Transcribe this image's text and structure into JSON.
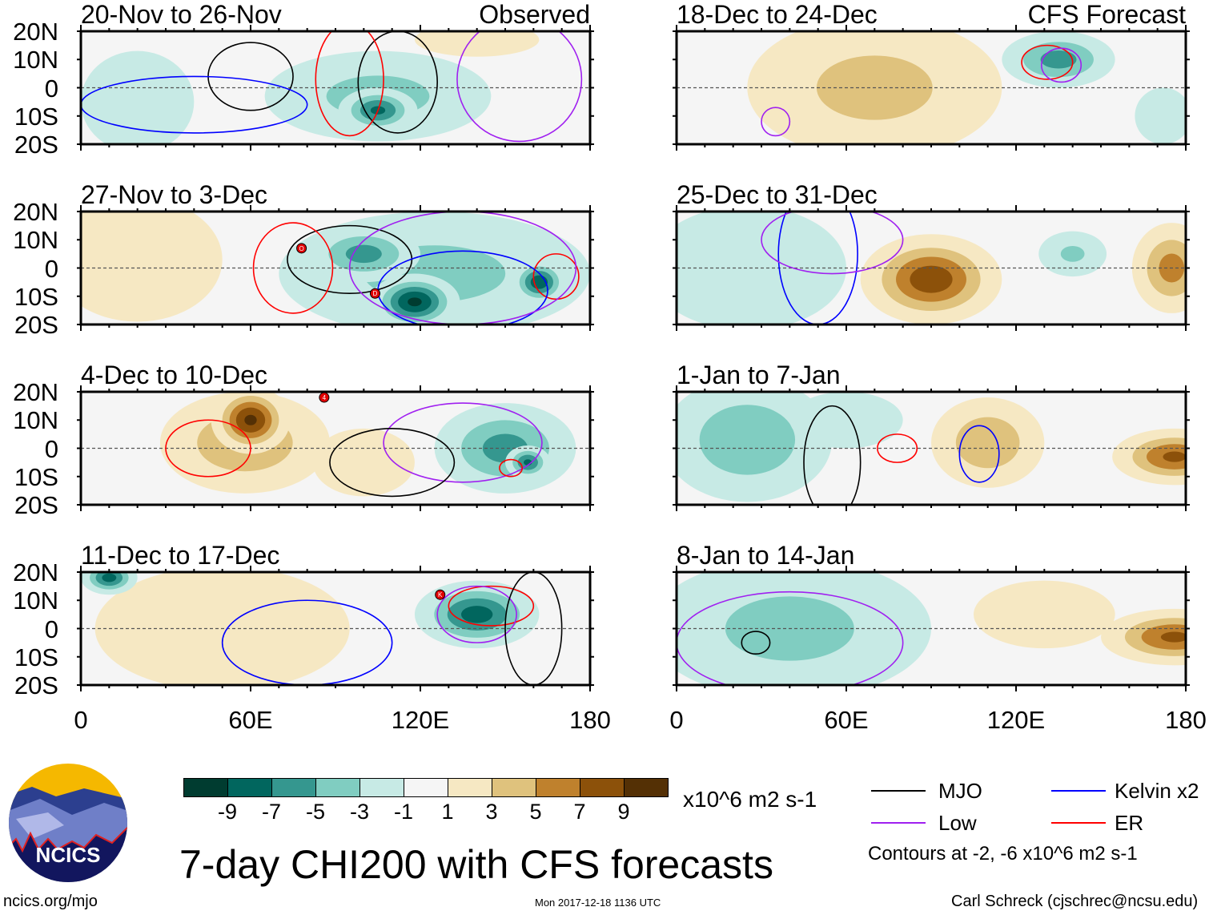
{
  "header": {
    "observed_label": "Observed",
    "forecast_label": "CFS Forecast"
  },
  "chart_data": {
    "type": "heatmap",
    "title": "7-day CHI200 with CFS forecasts",
    "variable": "200-hPa velocity potential anomaly",
    "units": "x10^6 m2 s-1",
    "xlim": [
      0,
      180
    ],
    "ylim": [
      -20,
      20
    ],
    "x_ticks": [
      "0",
      "60E",
      "120E",
      "180"
    ],
    "x_tick_values": [
      0,
      60,
      120,
      180
    ],
    "y_ticks": [
      "20N",
      "10N",
      "0",
      "10S",
      "20S"
    ],
    "y_tick_values": [
      20,
      10,
      0,
      -10,
      -20
    ],
    "colorbar": {
      "labels": [
        "-9",
        "-7",
        "-5",
        "-3",
        "-1",
        "1",
        "3",
        "5",
        "7",
        "9"
      ],
      "levels": [
        -9,
        -7,
        -5,
        -3,
        -1,
        1,
        3,
        5,
        7,
        9
      ],
      "colors": [
        "#003c30",
        "#01665e",
        "#35978f",
        "#80cdc1",
        "#c7eae5",
        "#f5f5f5",
        "#f6e8c3",
        "#dfc27d",
        "#bf812d",
        "#8c510a",
        "#543005"
      ]
    },
    "contour_colors": {
      "MJO": "#000000",
      "Kelvin": "#0000ff",
      "Low": "#a020f0",
      "ER": "#ff0000"
    },
    "panels": [
      {
        "title": "20-Nov to 26-Nov",
        "tag": "observed",
        "anomalies": [
          {
            "lon": 105,
            "lat": -3,
            "value": -4,
            "rx": 40,
            "ry": 16
          },
          {
            "lon": 105,
            "lat": -8,
            "value": -7.5,
            "rx": 14,
            "ry": 8
          },
          {
            "lon": 140,
            "lat": 17,
            "value": 2,
            "rx": 22,
            "ry": 6
          },
          {
            "lon": 20,
            "lat": -5,
            "value": -1.8,
            "rx": 20,
            "ry": 18
          }
        ],
        "contours": [
          {
            "type": "MJO",
            "lon": 60,
            "lat": 4,
            "rx": 15,
            "ry": 12
          },
          {
            "type": "MJO",
            "lon": 112,
            "lat": 2,
            "rx": 14,
            "ry": 18
          },
          {
            "type": "ER",
            "lon": 95,
            "lat": 3,
            "rx": 12,
            "ry": 20
          },
          {
            "type": "Kelvin",
            "lon": 40,
            "lat": -6,
            "rx": 40,
            "ry": 10
          },
          {
            "type": "Low",
            "lon": 155,
            "lat": 3,
            "rx": 22,
            "ry": 22
          }
        ],
        "storms": []
      },
      {
        "title": "27-Nov to 3-Dec",
        "tag": "",
        "anomalies": [
          {
            "lon": 18,
            "lat": -2,
            "value": 8,
            "rx": 17,
            "ry": 13
          },
          {
            "lon": 20,
            "lat": 3,
            "value": 3,
            "rx": 30,
            "ry": 22
          },
          {
            "lon": 125,
            "lat": -2,
            "value": -4,
            "rx": 55,
            "ry": 22
          },
          {
            "lon": 100,
            "lat": 5,
            "value": -6,
            "rx": 20,
            "ry": 10
          },
          {
            "lon": 118,
            "lat": -12,
            "value": -9.5,
            "rx": 16,
            "ry": 10
          },
          {
            "lon": 162,
            "lat": -5,
            "value": -8.5,
            "rx": 10,
            "ry": 8
          }
        ],
        "contours": [
          {
            "type": "MJO",
            "lon": 95,
            "lat": 3,
            "rx": 22,
            "ry": 12
          },
          {
            "type": "ER",
            "lon": 75,
            "lat": 0,
            "rx": 14,
            "ry": 16
          },
          {
            "type": "ER",
            "lon": 168,
            "lat": -3,
            "rx": 8,
            "ry": 8
          },
          {
            "type": "Kelvin",
            "lon": 135,
            "lat": -8,
            "rx": 30,
            "ry": 14
          },
          {
            "type": "Low",
            "lon": 135,
            "lat": 0,
            "rx": 40,
            "ry": 20
          }
        ],
        "storms": [
          {
            "label": "O",
            "lon": 78,
            "lat": 7
          },
          {
            "label": "D",
            "lon": 104,
            "lat": -9
          }
        ]
      },
      {
        "title": "4-Dec to 10-Dec",
        "tag": "",
        "anomalies": [
          {
            "lon": 58,
            "lat": 2,
            "value": 5,
            "rx": 30,
            "ry": 18
          },
          {
            "lon": 60,
            "lat": 10,
            "value": 9.5,
            "rx": 14,
            "ry": 12
          },
          {
            "lon": 100,
            "lat": -5,
            "value": 3,
            "rx": 18,
            "ry": 12
          },
          {
            "lon": 150,
            "lat": 0,
            "value": -6,
            "rx": 25,
            "ry": 16
          },
          {
            "lon": 158,
            "lat": -5,
            "value": -7.5,
            "rx": 8,
            "ry": 6
          }
        ],
        "contours": [
          {
            "type": "ER",
            "lon": 45,
            "lat": 0,
            "rx": 15,
            "ry": 10
          },
          {
            "type": "Low",
            "lon": 135,
            "lat": 2,
            "rx": 28,
            "ry": 14
          },
          {
            "type": "MJO",
            "lon": 110,
            "lat": -5,
            "rx": 22,
            "ry": 12
          },
          {
            "type": "ER",
            "lon": 152,
            "lat": -7,
            "rx": 4,
            "ry": 3
          }
        ],
        "storms": [
          {
            "label": "4",
            "lon": 86,
            "lat": 18
          }
        ]
      },
      {
        "title": "11-Dec to 17-Dec",
        "tag": "",
        "anomalies": [
          {
            "lon": 70,
            "lat": -2,
            "value": 7.5,
            "rx": 22,
            "ry": 14
          },
          {
            "lon": 55,
            "lat": 12,
            "value": 5,
            "rx": 15,
            "ry": 10
          },
          {
            "lon": 50,
            "lat": 0,
            "value": 3,
            "rx": 45,
            "ry": 22
          },
          {
            "lon": 140,
            "lat": 5,
            "value": -8,
            "rx": 22,
            "ry": 12
          },
          {
            "lon": 10,
            "lat": 18,
            "value": -8,
            "rx": 10,
            "ry": 6
          }
        ],
        "contours": [
          {
            "type": "ER",
            "lon": 145,
            "lat": 8,
            "rx": 15,
            "ry": 7
          },
          {
            "type": "Low",
            "lon": 140,
            "lat": 5,
            "rx": 14,
            "ry": 10
          },
          {
            "type": "Kelvin",
            "lon": 80,
            "lat": -5,
            "rx": 30,
            "ry": 15
          },
          {
            "type": "MJO",
            "lon": 160,
            "lat": 0,
            "rx": 10,
            "ry": 20
          }
        ],
        "storms": [
          {
            "label": "K",
            "lon": 127,
            "lat": 12
          }
        ]
      },
      {
        "title": "18-Dec to 24-Dec",
        "tag": "forecast",
        "anomalies": [
          {
            "lon": 80,
            "lat": -3,
            "value": 10,
            "rx": 24,
            "ry": 15
          },
          {
            "lon": 70,
            "lat": 0,
            "value": 4,
            "rx": 45,
            "ry": 25
          },
          {
            "lon": 135,
            "lat": 10,
            "value": -6,
            "rx": 20,
            "ry": 10
          },
          {
            "lon": 172,
            "lat": -10,
            "value": -3,
            "rx": 10,
            "ry": 10
          }
        ],
        "contours": [
          {
            "type": "ER",
            "lon": 131,
            "lat": 9,
            "rx": 9,
            "ry": 6
          },
          {
            "type": "Low",
            "lon": 136,
            "lat": 8,
            "rx": 7,
            "ry": 6
          },
          {
            "type": "Low",
            "lon": 35,
            "lat": -12,
            "rx": 5,
            "ry": 5
          }
        ],
        "storms": []
      },
      {
        "title": "25-Dec to 31-Dec",
        "tag": "",
        "anomalies": [
          {
            "lon": 90,
            "lat": -4,
            "value": 8.5,
            "rx": 25,
            "ry": 16
          },
          {
            "lon": 175,
            "lat": 0,
            "value": 6,
            "rx": 14,
            "ry": 16
          },
          {
            "lon": 25,
            "lat": 0,
            "value": -3,
            "rx": 35,
            "ry": 22
          },
          {
            "lon": 140,
            "lat": 5,
            "value": -3.5,
            "rx": 12,
            "ry": 8
          }
        ],
        "contours": [
          {
            "type": "Kelvin",
            "lon": 50,
            "lat": 5,
            "rx": 14,
            "ry": 25
          },
          {
            "type": "Low",
            "lon": 55,
            "lat": 10,
            "rx": 25,
            "ry": 12
          }
        ],
        "storms": []
      },
      {
        "title": "1-Jan to 7-Jan",
        "tag": "",
        "anomalies": [
          {
            "lon": 25,
            "lat": 3,
            "value": -5,
            "rx": 30,
            "ry": 22
          },
          {
            "lon": 60,
            "lat": 10,
            "value": -3,
            "rx": 20,
            "ry": 10
          },
          {
            "lon": 110,
            "lat": 2,
            "value": 5,
            "rx": 20,
            "ry": 16
          },
          {
            "lon": 176,
            "lat": -3,
            "value": 7.5,
            "rx": 22,
            "ry": 10
          }
        ],
        "contours": [
          {
            "type": "ER",
            "lon": 78,
            "lat": 0,
            "rx": 7,
            "ry": 5
          },
          {
            "type": "Kelvin",
            "lon": 107,
            "lat": -2,
            "rx": 7,
            "ry": 10
          },
          {
            "type": "MJO",
            "lon": 55,
            "lat": -5,
            "rx": 10,
            "ry": 20
          }
        ],
        "storms": []
      },
      {
        "title": "8-Jan to 14-Jan",
        "tag": "",
        "anomalies": [
          {
            "lon": 45,
            "lat": 0,
            "value": -9.5,
            "rx": 30,
            "ry": 20
          },
          {
            "lon": 40,
            "lat": 0,
            "value": -4,
            "rx": 50,
            "ry": 25
          },
          {
            "lon": 176,
            "lat": -3,
            "value": 7.5,
            "rx": 26,
            "ry": 10
          },
          {
            "lon": 130,
            "lat": 5,
            "value": 2,
            "rx": 25,
            "ry": 12
          }
        ],
        "contours": [
          {
            "type": "MJO",
            "lon": 28,
            "lat": -5,
            "rx": 5,
            "ry": 4
          },
          {
            "type": "Low",
            "lon": 40,
            "lat": -5,
            "rx": 40,
            "ry": 18
          }
        ],
        "storms": []
      }
    ]
  },
  "legend": {
    "units": "x10^6 m2 s-1",
    "items": [
      {
        "label": "MJO",
        "color": "#000000"
      },
      {
        "label": "Kelvin x2",
        "color": "#0000ff"
      },
      {
        "label": "Low",
        "color": "#a020f0"
      },
      {
        "label": "ER",
        "color": "#ff0000"
      }
    ],
    "contours_note": "Contours at -2, -6 x10^6 m2 s-1"
  },
  "logo": {
    "text": "NCICS"
  },
  "footer": {
    "url": "ncics.org/mjo",
    "timestamp": "Mon 2017-12-18 1136 UTC",
    "author": "Carl Schreck (cjschrec@ncsu.edu)"
  }
}
